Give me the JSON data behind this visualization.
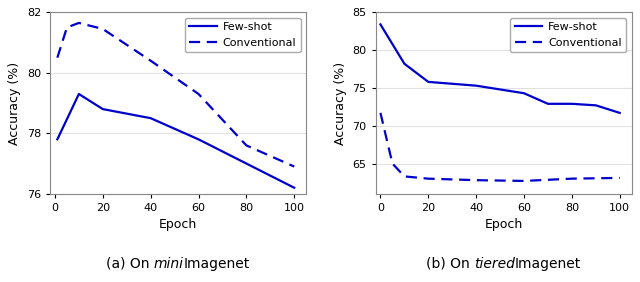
{
  "mini_fewshot_x": [
    1,
    10,
    20,
    40,
    60,
    80,
    100
  ],
  "mini_fewshot_y": [
    77.8,
    79.3,
    78.8,
    78.5,
    77.8,
    77.0,
    76.2
  ],
  "mini_conv_x": [
    1,
    5,
    10,
    20,
    40,
    60,
    80,
    100
  ],
  "mini_conv_y": [
    80.5,
    81.5,
    81.65,
    81.45,
    80.4,
    79.3,
    77.6,
    76.9
  ],
  "mini_ylim": [
    76,
    82
  ],
  "mini_yticks": [
    76,
    78,
    80,
    82
  ],
  "mini_xticks": [
    0,
    20,
    40,
    60,
    80,
    100
  ],
  "tiered_fewshot_x": [
    0,
    10,
    20,
    40,
    60,
    70,
    80,
    90,
    100
  ],
  "tiered_fewshot_y": [
    83.4,
    78.2,
    75.8,
    75.3,
    74.3,
    72.9,
    72.9,
    72.7,
    71.7
  ],
  "tiered_conv_x": [
    0,
    5,
    10,
    20,
    40,
    60,
    80,
    100
  ],
  "tiered_conv_y": [
    71.7,
    65.0,
    63.3,
    63.0,
    62.8,
    62.7,
    63.0,
    63.1
  ],
  "tiered_ylim": [
    61,
    85
  ],
  "tiered_yticks": [
    65,
    70,
    75,
    80,
    85
  ],
  "tiered_xticks": [
    0,
    20,
    40,
    60,
    80,
    100
  ],
  "line_color": "#0000CC",
  "xlabel": "Epoch",
  "ylabel": "Accuracy (%)",
  "legend_fewshot": "Few-shot",
  "legend_conv": "Conventional",
  "bg_color": "#ffffff",
  "fig_bg_color": "#ffffff",
  "grid_color": "#e0e0e0",
  "caption_fontsize": 10,
  "tick_fontsize": 8,
  "label_fontsize": 9,
  "legend_fontsize": 8,
  "lw": 1.6
}
